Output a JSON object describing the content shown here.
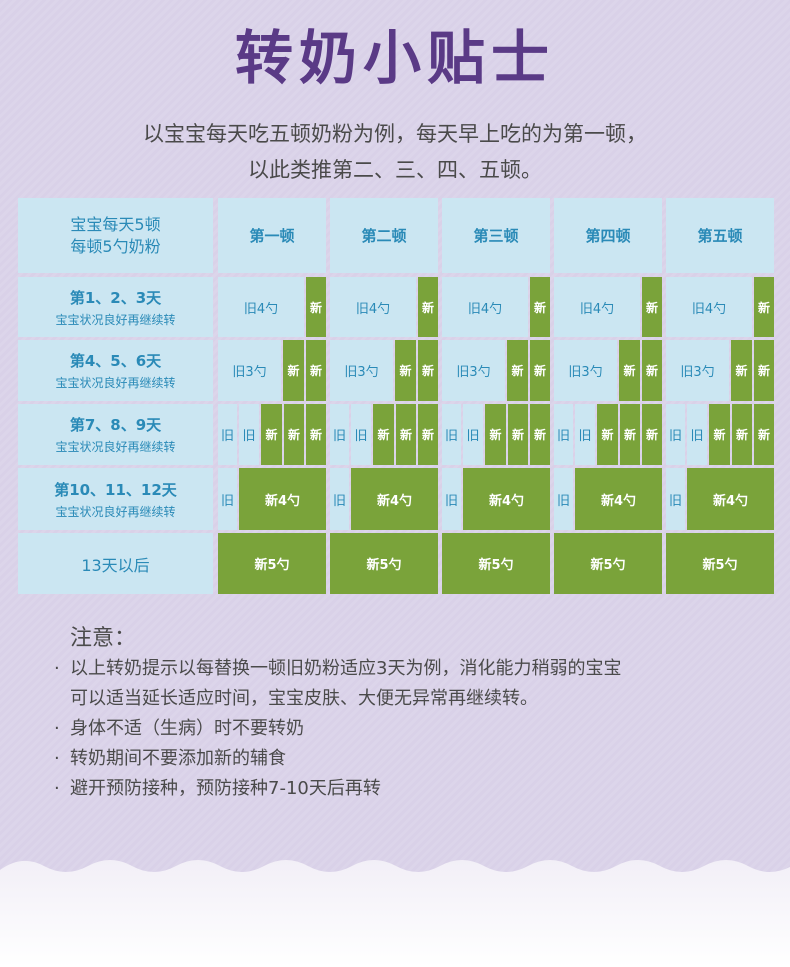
{
  "title": "转奶小贴士",
  "intro": {
    "line1": "以宝宝每天吃五顿奶粉为例，每天早上吃的为第一顿，",
    "line2": "以此类推第二、三、四、五顿。"
  },
  "table": {
    "corner_line1": "宝宝每天5顿",
    "corner_line2": "每顿5勺奶粉",
    "columns": [
      "第一顿",
      "第二顿",
      "第三顿",
      "第四顿",
      "第五顿"
    ],
    "rows": [
      {
        "title": "第1、2、3天",
        "sub": "宝宝状况良好再继续转",
        "old": "旧4勺",
        "new": "新"
      },
      {
        "title": "第4、5、6天",
        "sub": "宝宝状况良好再继续转",
        "old": "旧3勺",
        "new": "新"
      },
      {
        "title": "第7、8、9天",
        "sub": "宝宝状况良好再继续转",
        "old": "旧",
        "new": "新"
      },
      {
        "title": "第10、11、12天",
        "sub": "宝宝状况良好再继续转",
        "old": "旧",
        "new": "新4勺"
      },
      {
        "title": "13天以后",
        "sub": "",
        "old": "",
        "new": "新5勺"
      }
    ]
  },
  "notes": {
    "title": "注意：",
    "bullet": "·",
    "items": [
      {
        "lines": [
          "以上转奶提示以每替换一顿旧奶粉适应3天为例，消化能力稍弱的宝宝",
          "可以适当延长适应时间，宝宝皮肤、大便无异常再继续转。"
        ]
      },
      {
        "lines": [
          "身体不适（生病）时不要转奶"
        ]
      },
      {
        "lines": [
          "转奶期间不要添加新的辅食"
        ]
      },
      {
        "lines": [
          "避开预防接种，预防接种7-10天后再转"
        ]
      }
    ]
  },
  "colors": {
    "background": "#dcd5ea",
    "title": "#5a3a86",
    "header_bg": "#cbe6f2",
    "header_text": "#2a8ab7",
    "new_bg": "#7aa33a",
    "text": "#4a4a4a"
  }
}
